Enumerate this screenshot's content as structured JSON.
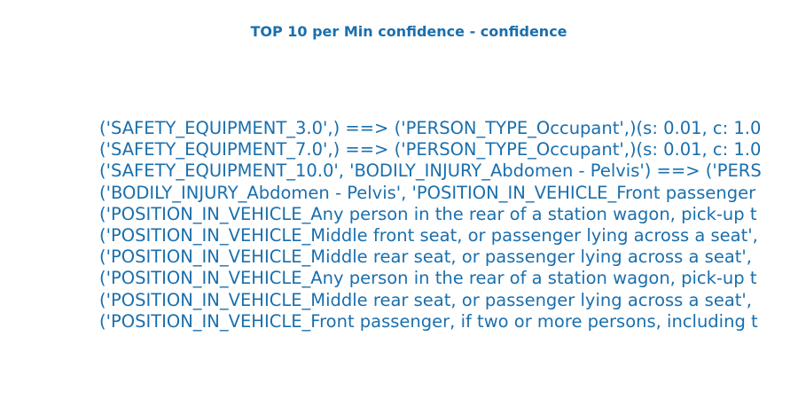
{
  "title": "TOP 10 per Min confidence - confidence",
  "rules": [
    "('SAFETY_EQUIPMENT_3.0',) ==> ('PERSON_TYPE_Occupant',)(s: 0.01, c: 1.0",
    "('SAFETY_EQUIPMENT_7.0',) ==> ('PERSON_TYPE_Occupant',)(s: 0.01, c: 1.0",
    "('SAFETY_EQUIPMENT_10.0', 'BODILY_INJURY_Abdomen - Pelvis') ==> ('PERS",
    "('BODILY_INJURY_Abdomen - Pelvis', 'POSITION_IN_VEHICLE_Front passenger",
    "('POSITION_IN_VEHICLE_Any person in the rear of a station wagon, pick-up t",
    "('POSITION_IN_VEHICLE_Middle front seat, or passenger lying across a seat',",
    "('POSITION_IN_VEHICLE_Middle rear seat, or passenger lying across a seat',",
    "('POSITION_IN_VEHICLE_Any person in the rear of a station wagon, pick-up t",
    "('POSITION_IN_VEHICLE_Middle rear seat, or passenger lying across a seat',",
    "('POSITION_IN_VEHICLE_Front passenger, if two or more persons, including t"
  ]
}
